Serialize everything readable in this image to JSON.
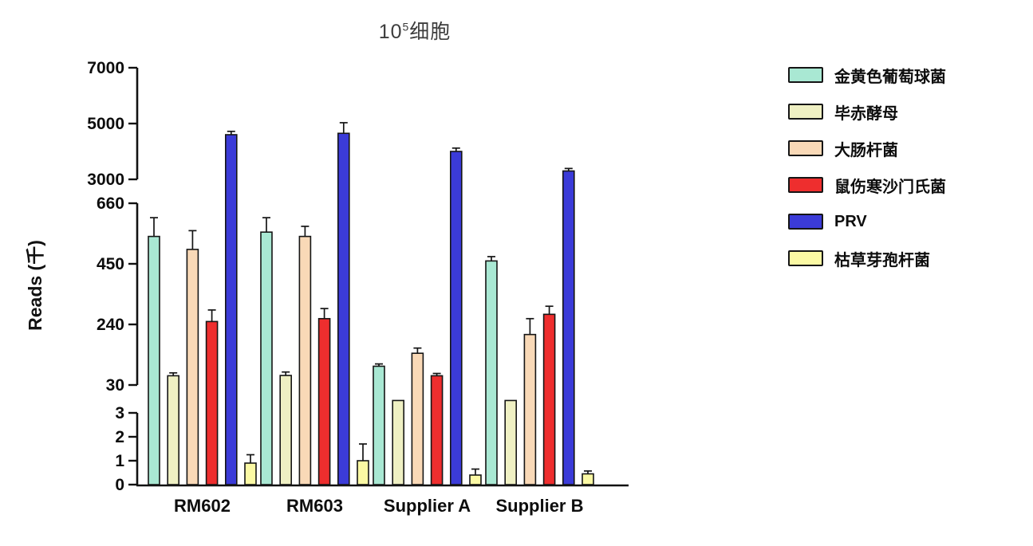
{
  "title": {
    "base": "10",
    "sup": "5",
    "suffix": "细胞"
  },
  "chart_data": {
    "type": "bar",
    "title": "10^5细胞",
    "xlabel": "",
    "ylabel": "Reads (千)",
    "legend_position": "right",
    "grid": false,
    "categories": [
      "RM602",
      "RM603",
      "Supplier A",
      "Supplier B"
    ],
    "series": [
      {
        "name": "金黄色葡萄球菌",
        "color": "#a9e8d3",
        "values": [
          545,
          560,
          95,
          460
        ],
        "errors": [
          65,
          50,
          8,
          15
        ]
      },
      {
        "name": "毕赤酵母",
        "color": "#eff0c3",
        "values": [
          62,
          63,
          15,
          15
        ],
        "errors": [
          10,
          12,
          0,
          0
        ]
      },
      {
        "name": "大肠杆菌",
        "color": "#f9d9b7",
        "values": [
          500,
          545,
          140,
          205
        ],
        "errors": [
          65,
          35,
          18,
          55
        ]
      },
      {
        "name": "鼠伤寒沙门氏菌",
        "color": "#ee2e2e",
        "values": [
          250,
          260,
          62,
          275
        ],
        "errors": [
          40,
          35,
          8,
          28
        ]
      },
      {
        "name": "PRV",
        "color": "#3b3bd8",
        "values": [
          4600,
          4650,
          4000,
          3300
        ],
        "errors": [
          120,
          380,
          120,
          90
        ]
      },
      {
        "name": "枯草芽孢杆菌",
        "color": "#fbf9a4",
        "values": [
          0.9,
          1.0,
          0.4,
          0.45
        ],
        "errors": [
          0.35,
          0.7,
          0.25,
          0.12
        ]
      }
    ],
    "y_axis": {
      "broken": true,
      "segments": [
        {
          "min": 0,
          "max": 3,
          "ticks": [
            0,
            1,
            2,
            3
          ]
        },
        {
          "min": 30,
          "max": 660,
          "ticks": [
            30,
            240,
            450,
            660
          ]
        },
        {
          "min": 3000,
          "max": 7000,
          "ticks": [
            3000,
            5000,
            7000
          ]
        }
      ]
    }
  }
}
